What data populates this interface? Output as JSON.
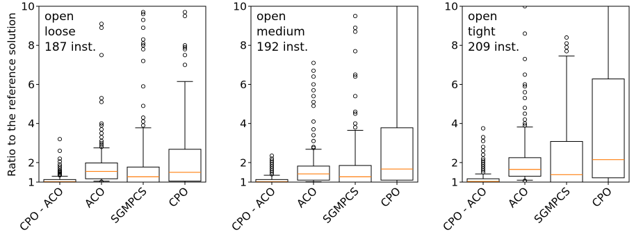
{
  "chart_data": {
    "type": "boxplot",
    "ylabel": "Ratio to the reference solution",
    "ylim": [
      1,
      10
    ],
    "yticks": [
      1,
      2,
      4,
      6,
      8,
      10
    ],
    "categories": [
      "CPO - ACO",
      "ACO",
      "SGMPCS",
      "CPO"
    ],
    "colors": {
      "median": "#ff7f0e",
      "box": "#000000"
    },
    "panels": [
      {
        "annotation": [
          "open",
          "loose",
          "187 inst."
        ],
        "boxes": [
          {
            "category": "CPO - ACO",
            "whislo": 1.0,
            "q1": 1.0,
            "med": 1.02,
            "q3": 1.13,
            "whishi": 1.3,
            "fliers": [
              1.35,
              1.4,
              1.45,
              1.5,
              1.55,
              1.6,
              1.7,
              1.8,
              1.9,
              2.05,
              2.2,
              2.6,
              3.2
            ]
          },
          {
            "category": "ACO",
            "whislo": 1.05,
            "q1": 1.17,
            "med": 1.55,
            "q3": 1.98,
            "whishi": 2.75,
            "fliers": [
              1.02,
              2.8,
              2.9,
              3.0,
              3.1,
              3.3,
              3.5,
              3.7,
              3.9,
              4.0,
              5.1,
              5.3,
              7.5,
              8.9,
              9.1
            ]
          },
          {
            "category": "SGMPCS",
            "whislo": 1.0,
            "q1": 1.0,
            "med": 1.27,
            "q3": 1.77,
            "whishi": 3.78,
            "fliers": [
              3.9,
              4.1,
              4.3,
              4.9,
              5.9,
              7.2,
              7.8,
              8.0,
              8.1,
              8.3,
              8.9,
              9.3,
              9.6,
              9.7
            ]
          },
          {
            "category": "CPO",
            "whislo": 1.0,
            "q1": 1.05,
            "med": 1.5,
            "q3": 2.68,
            "whishi": 6.15,
            "fliers": [
              7.0,
              7.5,
              7.8,
              7.9,
              8.0,
              9.5,
              9.7
            ]
          }
        ]
      },
      {
        "annotation": [
          "open",
          "medium",
          "192 inst."
        ],
        "boxes": [
          {
            "category": "CPO - ACO",
            "whislo": 1.0,
            "q1": 1.0,
            "med": 1.02,
            "q3": 1.13,
            "whishi": 1.35,
            "fliers": [
              1.4,
              1.5,
              1.6,
              1.7,
              1.8,
              1.9,
              2.0,
              2.1,
              2.2,
              2.35
            ]
          },
          {
            "category": "ACO",
            "whislo": 1.02,
            "q1": 1.1,
            "med": 1.42,
            "q3": 1.82,
            "whishi": 2.68,
            "fliers": [
              2.75,
              2.8,
              3.1,
              3.4,
              3.7,
              4.1,
              4.9,
              5.1,
              5.4,
              5.7,
              6.0,
              6.4,
              6.7,
              7.1
            ]
          },
          {
            "category": "SGMPCS",
            "whislo": 1.0,
            "q1": 1.0,
            "med": 1.27,
            "q3": 1.85,
            "whishi": 3.65,
            "fliers": [
              3.8,
              4.0,
              4.5,
              4.6,
              5.4,
              6.4,
              6.5,
              7.7,
              8.7,
              8.9,
              9.5
            ]
          },
          {
            "category": "CPO",
            "whislo": 1.0,
            "q1": 1.1,
            "med": 1.67,
            "q3": 3.78,
            "whishi": 10.0,
            "fliers": []
          }
        ]
      },
      {
        "annotation": [
          "open",
          "tight",
          "209 inst."
        ],
        "boxes": [
          {
            "category": "CPO - ACO",
            "whislo": 1.0,
            "q1": 1.0,
            "med": 1.03,
            "q3": 1.17,
            "whishi": 1.42,
            "fliers": [
              1.5,
              1.6,
              1.7,
              1.8,
              1.9,
              2.0,
              2.1,
              2.2,
              2.4,
              2.6,
              2.8,
              3.1,
              3.3,
              3.75
            ]
          },
          {
            "category": "ACO",
            "whislo": 1.1,
            "q1": 1.3,
            "med": 1.65,
            "q3": 2.25,
            "whishi": 3.82,
            "fliers": [
              1.03,
              1.07,
              3.9,
              4.0,
              4.2,
              4.5,
              4.8,
              5.3,
              5.6,
              5.9,
              6.0,
              6.5,
              7.3,
              8.6,
              10.0
            ]
          },
          {
            "category": "SGMPCS",
            "whislo": 1.0,
            "q1": 1.0,
            "med": 1.38,
            "q3": 3.08,
            "whishi": 7.45,
            "fliers": [
              7.7,
              7.9,
              8.1,
              8.4
            ]
          },
          {
            "category": "CPO",
            "whislo": 1.0,
            "q1": 1.22,
            "med": 2.15,
            "q3": 6.28,
            "whishi": 10.0,
            "fliers": []
          }
        ]
      }
    ]
  }
}
